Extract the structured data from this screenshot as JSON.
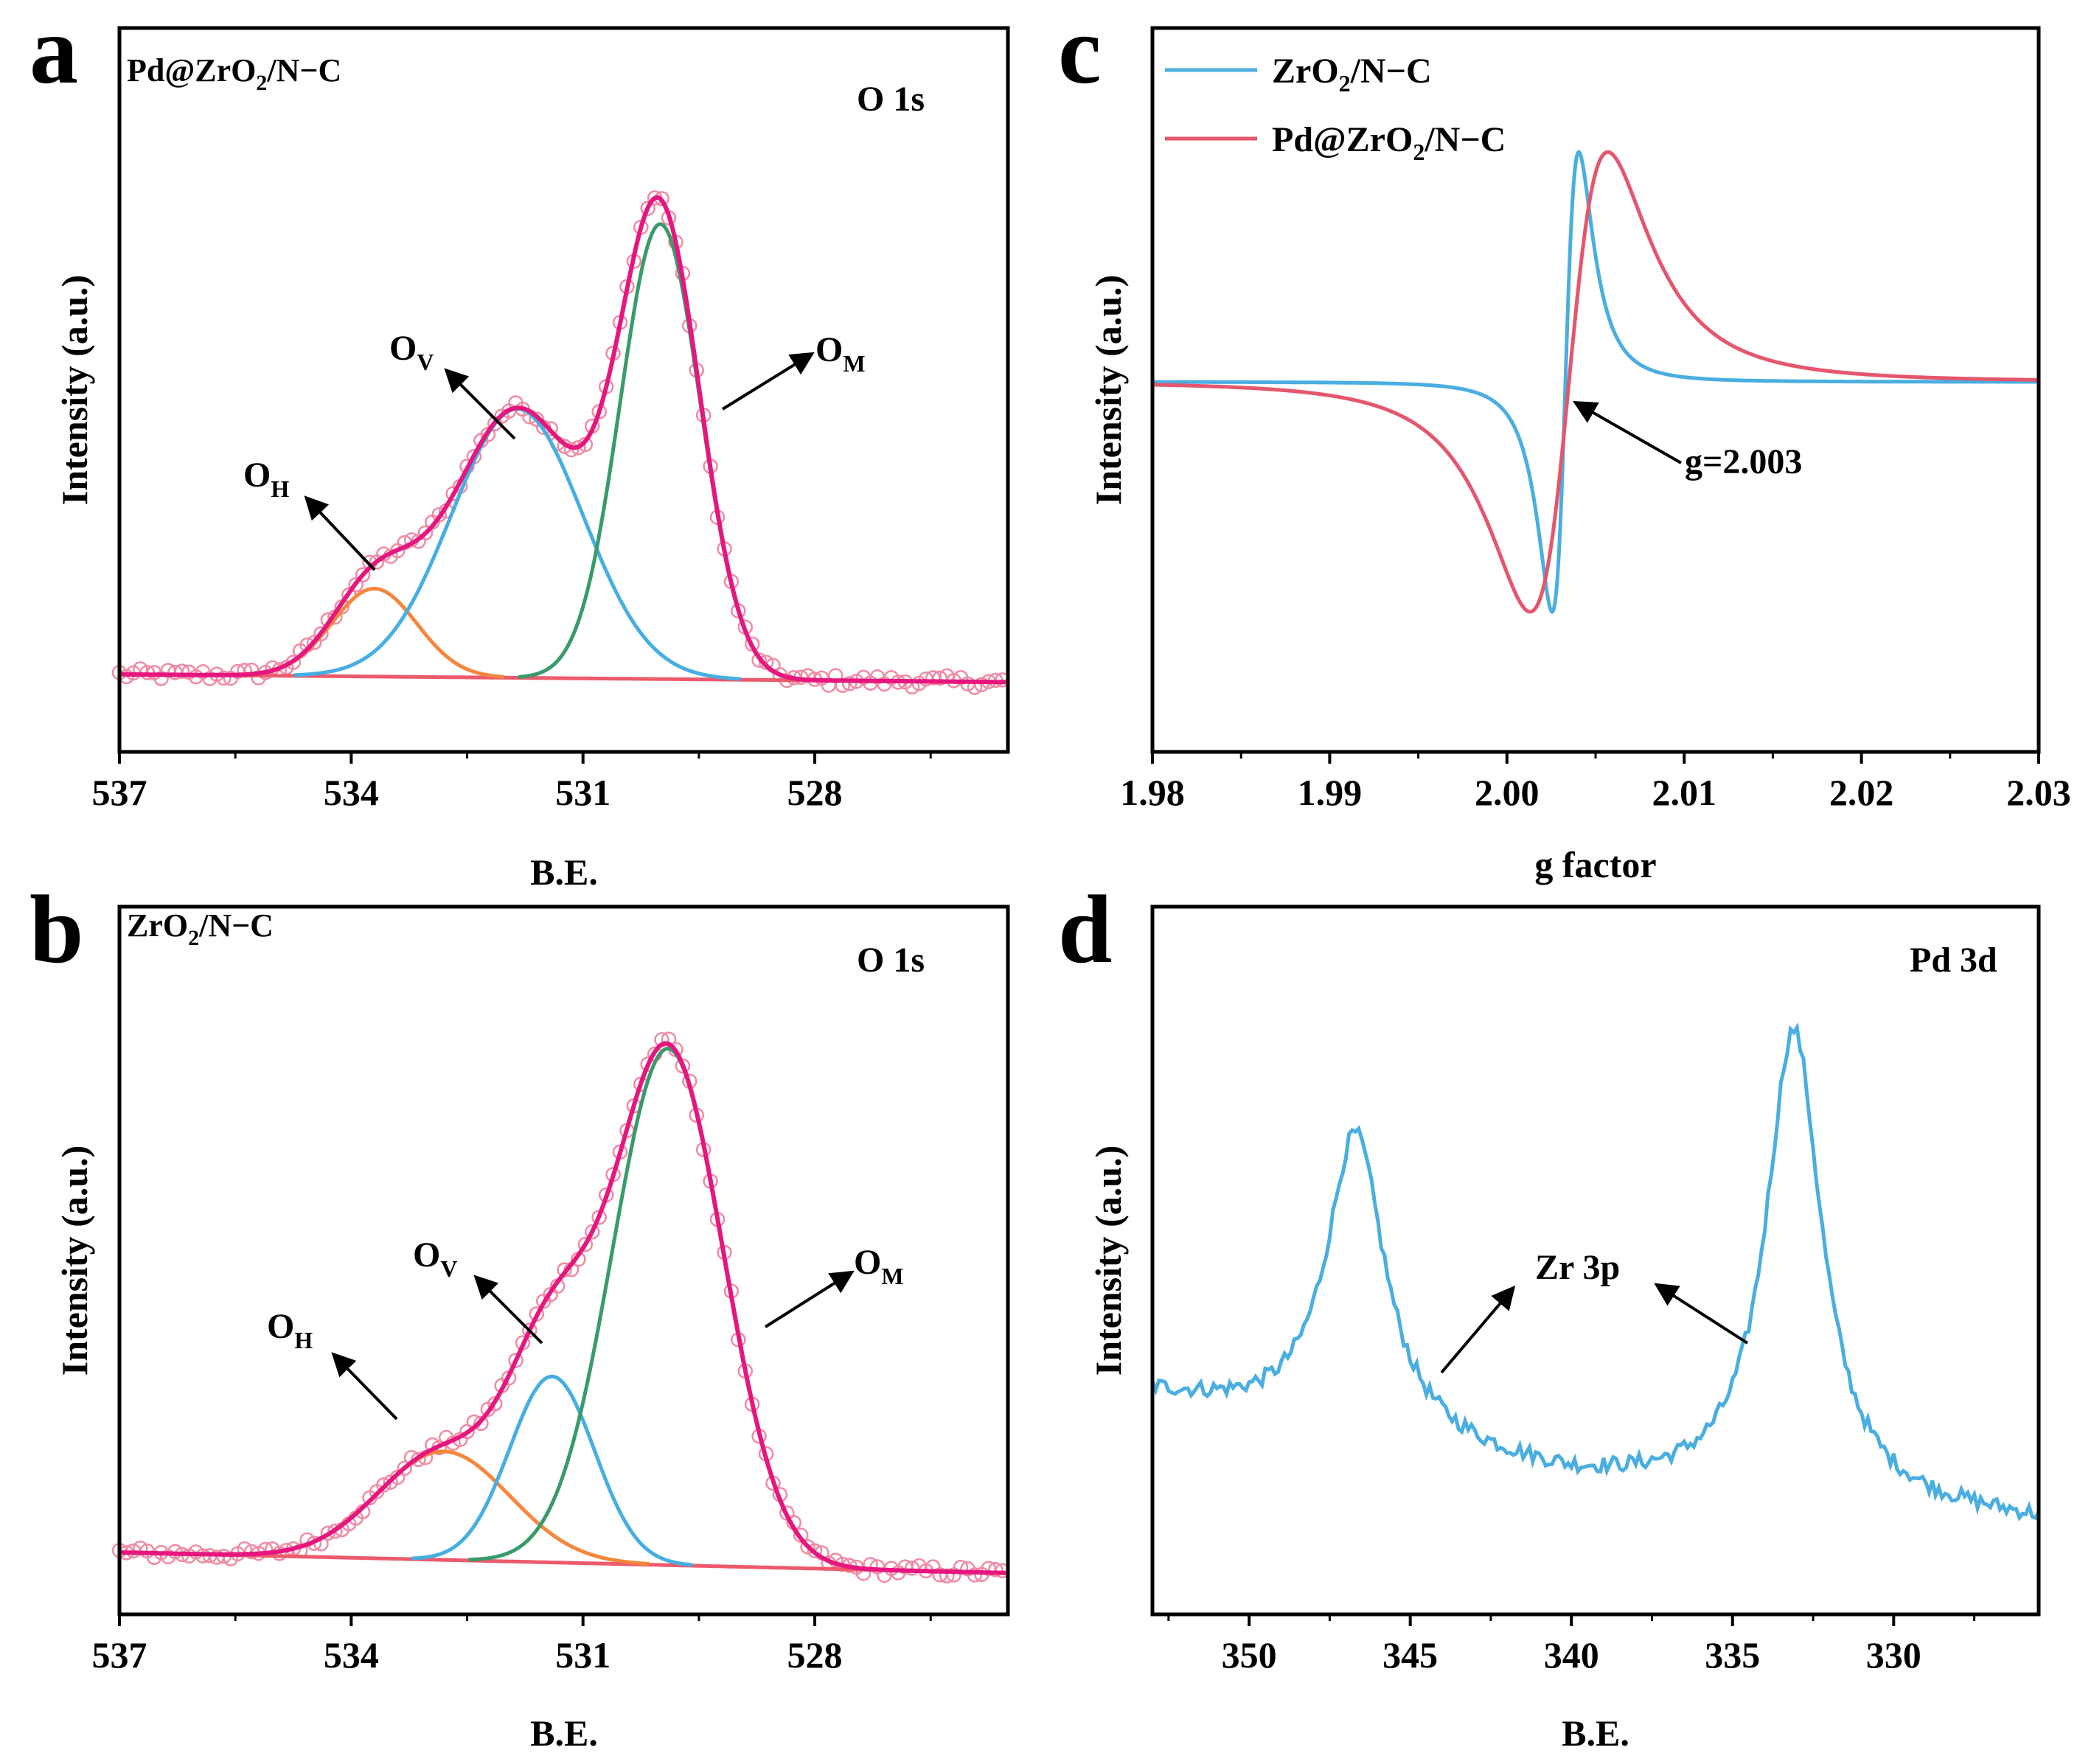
{
  "colors": {
    "fit": "#e6167f",
    "raw": "#f08aa2",
    "O_H": "#f5873d",
    "O_V": "#47aee1",
    "O_M": "#3a9a6c",
    "background": "#ec5a6c",
    "zro2_epr": "#4aaee0",
    "pd_epr": "#e5566d",
    "pd3d": "#4aaee0",
    "axis": "#000000"
  },
  "chart_data": [
    {
      "panel": "a",
      "type": "line",
      "sample": {
        "main": "Pd@ZrO",
        "sub": "2",
        "rest": "/N−C"
      },
      "title": "O 1s",
      "xlabel": "B.E.",
      "ylabel": "Intensity (a.u.)",
      "xlim": [
        537,
        525.5
      ],
      "x_ticks": [
        "537",
        "534",
        "531",
        "528"
      ],
      "x_tick_values": [
        537,
        534,
        531,
        528
      ],
      "ylim": [
        -0.15,
        1.25
      ],
      "baseline": [
        [
          537.0,
          0.0
        ],
        [
          525.5,
          -0.015
        ]
      ],
      "peaks": [
        {
          "name": "O_H",
          "center": 533.7,
          "height": 0.17,
          "sigma": 0.55
        },
        {
          "name": "O_V",
          "center": 531.85,
          "height": 0.52,
          "sigma": 0.85
        },
        {
          "name": "O_M",
          "center": 530.0,
          "height": 0.88,
          "sigma": 0.52
        }
      ],
      "annotations": [
        {
          "main": "O",
          "sub": "H",
          "peak": "O_H"
        },
        {
          "main": "O",
          "sub": "V",
          "peak": "O_V"
        },
        {
          "main": "O",
          "sub": "M",
          "peak": "O_M"
        }
      ]
    },
    {
      "panel": "b",
      "type": "line",
      "sample": {
        "main": "ZrO",
        "sub": "2",
        "rest": "/N−C"
      },
      "title": "O 1s",
      "xlabel": "B.E.",
      "ylabel": "Intensity (a.u.)",
      "xlim": [
        537,
        525.5
      ],
      "x_ticks": [
        "537",
        "534",
        "531",
        "528"
      ],
      "x_tick_values": [
        537,
        534,
        531,
        528
      ],
      "ylim": [
        -0.12,
        1.25
      ],
      "baseline": [
        [
          537.0,
          0.0
        ],
        [
          525.5,
          -0.04
        ]
      ],
      "peaks": [
        {
          "name": "O_H",
          "center": 532.8,
          "height": 0.21,
          "sigma": 0.85
        },
        {
          "name": "O_V",
          "center": 531.4,
          "height": 0.36,
          "sigma": 0.55
        },
        {
          "name": "O_M",
          "center": 529.9,
          "height": 1.0,
          "sigma": 0.72
        }
      ],
      "annotations": [
        {
          "main": "O",
          "sub": "H",
          "peak": "O_H"
        },
        {
          "main": "O",
          "sub": "V",
          "peak": "O_V"
        },
        {
          "main": "O",
          "sub": "M",
          "peak": "O_M"
        }
      ]
    },
    {
      "panel": "c",
      "type": "line",
      "xlabel": "g factor",
      "ylabel": "Intensity (a.u.)",
      "xlim": [
        1.98,
        2.03
      ],
      "x_ticks": [
        "1.98",
        "1.99",
        "2.00",
        "2.01",
        "2.02",
        "2.03"
      ],
      "x_tick_values": [
        1.98,
        1.99,
        2.0,
        2.01,
        2.02,
        2.03
      ],
      "ylim": [
        -1.15,
        1.1
      ],
      "annotation": "g=2.003",
      "annotation_x": 2.0033,
      "series": [
        {
          "name": "ZrO2/N−C",
          "legend": {
            "main": "ZrO",
            "sub": "2",
            "rest": "/N−C"
          },
          "center": 2.0033,
          "half_width": 0.0013,
          "amplitude": 1.0,
          "offset": 0.0
        },
        {
          "name": "Pd@ZrO2/N−C",
          "legend": {
            "main": "Pd@ZrO",
            "sub": "2",
            "rest": "/N−C"
          },
          "center": 2.0035,
          "half_width": 0.0038,
          "amplitude": 1.0,
          "offset": 0.0
        }
      ]
    },
    {
      "panel": "d",
      "type": "line",
      "title": "Pd 3d",
      "xlabel": "B.E.",
      "ylabel": "Intensity (a.u.)",
      "xlim": [
        353,
        325.5
      ],
      "x_ticks": [
        "350",
        "345",
        "340",
        "335",
        "330"
      ],
      "x_tick_values": [
        350,
        345,
        340,
        335,
        330
      ],
      "ylim": [
        -0.2,
        1.35
      ],
      "background": [
        [
          353,
          0.28
        ],
        [
          340,
          0.09
        ],
        [
          325.5,
          0.0
        ]
      ],
      "peaks": [
        {
          "center": 346.7,
          "height": 0.66,
          "gamma": 1.1
        },
        {
          "center": 333.1,
          "height": 1.03,
          "gamma": 1.05
        }
      ],
      "annotation": "Zr 3p",
      "annotation_targets": [
        344.6,
        335.0
      ]
    }
  ]
}
